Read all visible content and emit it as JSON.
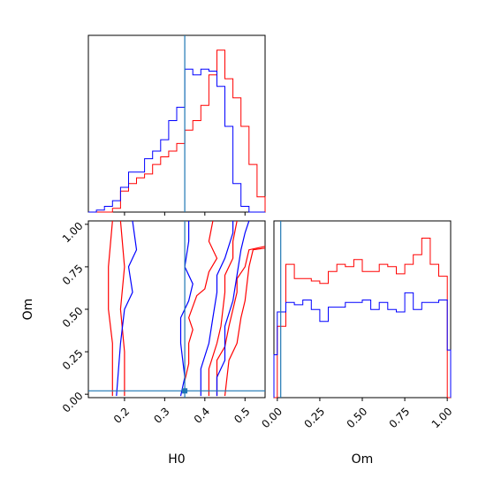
{
  "colors": {
    "series_a": "#ff0000",
    "series_b": "#0000ff",
    "truth": "#1f77b4",
    "axes": "#000000"
  },
  "chart_data": {
    "type": "corner",
    "xlabel": "H0",
    "ylabel": "Om",
    "om_xlabel": "Om",
    "truth": {
      "H0": 0.35,
      "Om": 0.02
    },
    "h0_range": [
      0.11,
      0.55
    ],
    "om_range": [
      -0.02,
      1.02
    ],
    "h0_ticks": [
      0.2,
      0.3,
      0.4,
      0.5
    ],
    "h0_tick_labels": [
      "0.2",
      "0.3",
      "0.4",
      "0.5"
    ],
    "om_ticks": [
      0.0,
      0.25,
      0.5,
      0.75,
      1.0
    ],
    "om_tick_labels": [
      "0.00",
      "0.25",
      "0.50",
      "0.75",
      "1.00"
    ],
    "h0_hist": {
      "bin_edges": [
        0.11,
        0.13,
        0.15,
        0.17,
        0.19,
        0.21,
        0.23,
        0.25,
        0.27,
        0.29,
        0.31,
        0.33,
        0.35,
        0.37,
        0.39,
        0.41,
        0.43,
        0.45,
        0.47,
        0.49,
        0.51,
        0.53,
        0.55
      ],
      "series": [
        {
          "name": "red",
          "values": [
            0,
            0,
            0,
            0.02,
            0.11,
            0.15,
            0.18,
            0.2,
            0.25,
            0.29,
            0.32,
            0.36,
            0.43,
            0.48,
            0.56,
            0.72,
            0.85,
            0.7,
            0.6,
            0.45,
            0.25,
            0.08
          ]
        },
        {
          "name": "blue",
          "values": [
            0,
            0.01,
            0.03,
            0.06,
            0.13,
            0.21,
            0.21,
            0.28,
            0.32,
            0.38,
            0.48,
            0.55,
            0.75,
            0.72,
            0.75,
            0.74,
            0.66,
            0.45,
            0.15,
            0.03,
            0,
            0
          ]
        }
      ]
    },
    "om_hist": {
      "bin_edges": [
        -0.02,
        0.0,
        0.05,
        0.1,
        0.15,
        0.2,
        0.25,
        0.3,
        0.35,
        0.4,
        0.45,
        0.5,
        0.55,
        0.6,
        0.65,
        0.7,
        0.75,
        0.8,
        0.85,
        0.9,
        0.95,
        1.0,
        1.02
      ],
      "series": [
        {
          "name": "red",
          "values": [
            0,
            0.3,
            0.56,
            0.5,
            0.5,
            0.49,
            0.48,
            0.53,
            0.56,
            0.55,
            0.58,
            0.53,
            0.53,
            0.56,
            0.55,
            0.52,
            0.56,
            0.6,
            0.67,
            0.56,
            0.51,
            0
          ]
        },
        {
          "name": "blue",
          "values": [
            0.18,
            0.36,
            0.4,
            0.39,
            0.41,
            0.37,
            0.32,
            0.38,
            0.38,
            0.4,
            0.4,
            0.41,
            0.37,
            0.4,
            0.37,
            0.36,
            0.44,
            0.37,
            0.4,
            0.4,
            0.41,
            0.2
          ]
        }
      ]
    },
    "contours": {
      "red": [
        [
          [
            0.17,
            -0.01
          ],
          [
            0.17,
            0.3
          ],
          [
            0.16,
            0.5
          ],
          [
            0.16,
            0.75
          ],
          [
            0.17,
            1.02
          ]
        ],
        [
          [
            0.2,
            -0.01
          ],
          [
            0.2,
            0.25
          ],
          [
            0.19,
            0.5
          ],
          [
            0.2,
            0.75
          ],
          [
            0.19,
            1.02
          ]
        ],
        [
          [
            0.35,
            0.08
          ],
          [
            0.36,
            0.18
          ],
          [
            0.36,
            0.3
          ],
          [
            0.37,
            0.38
          ],
          [
            0.36,
            0.45
          ],
          [
            0.38,
            0.58
          ],
          [
            0.4,
            0.62
          ],
          [
            0.41,
            0.72
          ],
          [
            0.43,
            0.8
          ],
          [
            0.41,
            0.9
          ],
          [
            0.42,
            1.02
          ]
        ],
        [
          [
            0.41,
            -0.01
          ],
          [
            0.41,
            0.15
          ],
          [
            0.43,
            0.3
          ],
          [
            0.44,
            0.4
          ],
          [
            0.45,
            0.6
          ],
          [
            0.45,
            0.7
          ],
          [
            0.47,
            0.8
          ],
          [
            0.47,
            0.9
          ],
          [
            0.48,
            1.02
          ]
        ],
        [
          [
            0.43,
            -0.01
          ],
          [
            0.43,
            0.2
          ],
          [
            0.45,
            0.28
          ],
          [
            0.46,
            0.4
          ],
          [
            0.48,
            0.6
          ],
          [
            0.48,
            0.68
          ],
          [
            0.5,
            0.75
          ],
          [
            0.51,
            0.85
          ],
          [
            0.55,
            0.87
          ]
        ],
        [
          [
            0.45,
            -0.01
          ],
          [
            0.46,
            0.2
          ],
          [
            0.48,
            0.3
          ],
          [
            0.49,
            0.45
          ],
          [
            0.5,
            0.55
          ],
          [
            0.51,
            0.75
          ],
          [
            0.52,
            0.85
          ],
          [
            0.55,
            0.86
          ]
        ]
      ],
      "blue": [
        [
          [
            0.18,
            -0.01
          ],
          [
            0.19,
            0.3
          ],
          [
            0.2,
            0.5
          ],
          [
            0.22,
            0.6
          ],
          [
            0.21,
            0.75
          ],
          [
            0.23,
            0.85
          ],
          [
            0.22,
            1.02
          ]
        ],
        [
          [
            0.34,
            -0.01
          ],
          [
            0.35,
            0.1
          ],
          [
            0.34,
            0.3
          ],
          [
            0.34,
            0.45
          ],
          [
            0.36,
            0.55
          ],
          [
            0.37,
            0.65
          ],
          [
            0.35,
            0.75
          ],
          [
            0.36,
            0.9
          ],
          [
            0.36,
            1.02
          ]
        ],
        [
          [
            0.39,
            -0.01
          ],
          [
            0.39,
            0.15
          ],
          [
            0.41,
            0.3
          ],
          [
            0.42,
            0.45
          ],
          [
            0.43,
            0.6
          ],
          [
            0.43,
            0.7
          ],
          [
            0.45,
            0.8
          ],
          [
            0.47,
            0.95
          ],
          [
            0.47,
            1.02
          ]
        ],
        [
          [
            0.43,
            -0.01
          ],
          [
            0.43,
            0.1
          ],
          [
            0.45,
            0.2
          ],
          [
            0.45,
            0.4
          ],
          [
            0.47,
            0.55
          ],
          [
            0.48,
            0.7
          ],
          [
            0.49,
            0.85
          ],
          [
            0.5,
            0.95
          ],
          [
            0.51,
            1.02
          ]
        ]
      ]
    }
  }
}
